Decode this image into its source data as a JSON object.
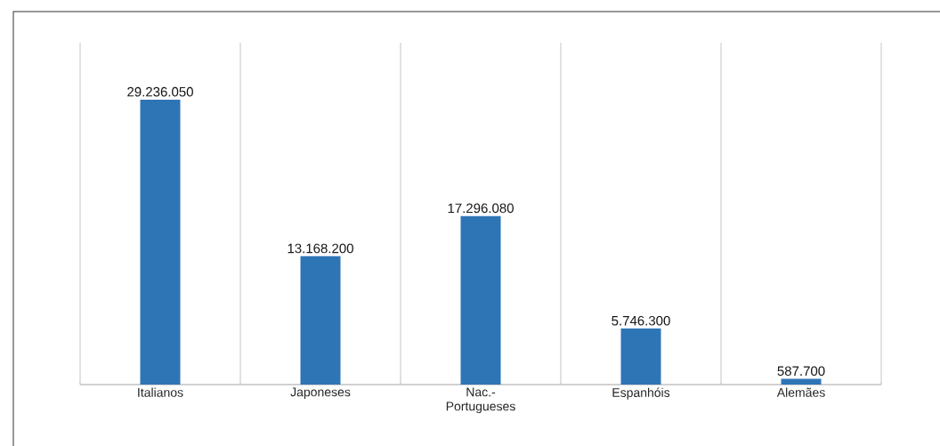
{
  "chart_data": {
    "type": "bar",
    "categories": [
      "Italianos",
      "Japoneses",
      "Nac.- Portugueses",
      "Espanhóis",
      "Alemães"
    ],
    "values": [
      29236050,
      13168200,
      17296080,
      5746300,
      587700
    ],
    "value_labels": [
      "29.236.050",
      "13.168.200",
      "17.296.080",
      "5.746.300",
      "587.700"
    ],
    "color": "#2e75b6",
    "grid": "x"
  }
}
